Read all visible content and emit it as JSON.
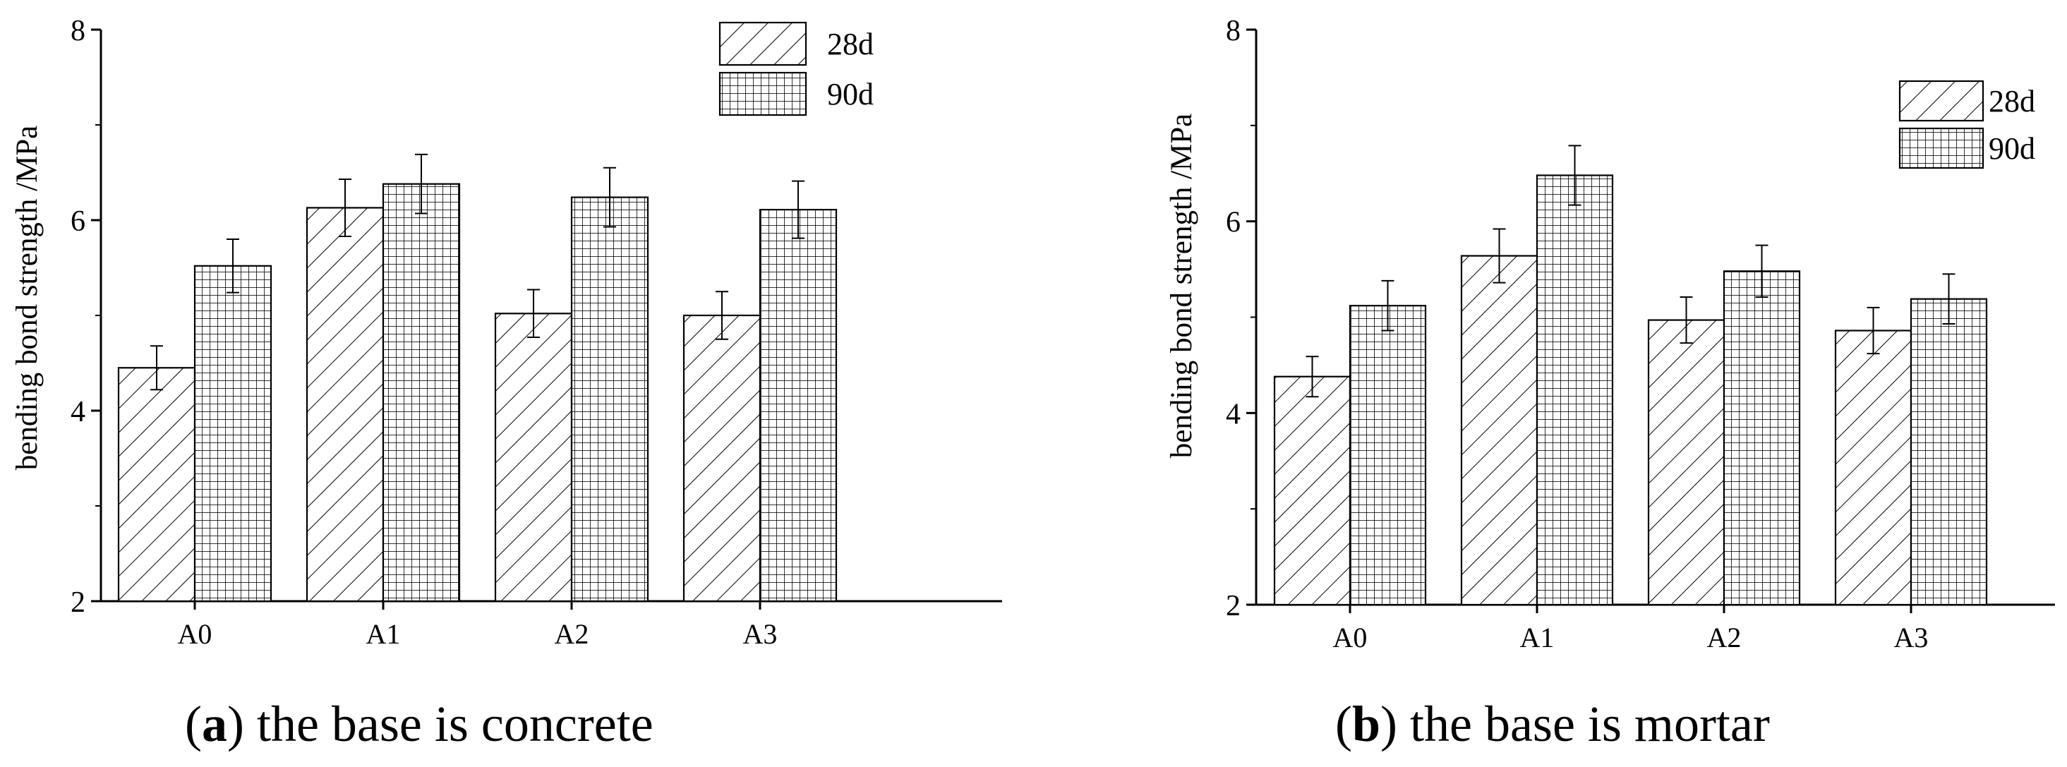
{
  "chart_data": [
    {
      "type": "bar",
      "panel_id": "a",
      "panel_label": "a",
      "caption_text": " the base is concrete",
      "ylabel": "bending bond strength /MPa",
      "xlabel": "",
      "ylim": [
        2,
        8
      ],
      "yticks": [
        "2",
        "4",
        "6",
        "8"
      ],
      "categories": [
        "A0",
        "A1",
        "A2",
        "A3"
      ],
      "legend_position": "top-right",
      "series": [
        {
          "name": "28d",
          "pattern": "hatch",
          "values": [
            4.45,
            6.13,
            5.02,
            5.0
          ],
          "errors": [
            0.23,
            0.3,
            0.25,
            0.25
          ]
        },
        {
          "name": "90d",
          "pattern": "grid",
          "values": [
            5.52,
            6.38,
            6.24,
            6.11
          ],
          "errors": [
            0.28,
            0.31,
            0.31,
            0.3
          ]
        }
      ]
    },
    {
      "type": "bar",
      "panel_id": "b",
      "panel_label": "b",
      "caption_text": " the base is mortar",
      "ylabel": "bending bond strength /MPa",
      "xlabel": "",
      "ylim": [
        2,
        8
      ],
      "yticks": [
        "2",
        "4",
        "6",
        "8"
      ],
      "categories": [
        "A0",
        "A1",
        "A2",
        "A3"
      ],
      "legend_position": "top-right",
      "series": [
        {
          "name": "28d",
          "pattern": "hatch",
          "values": [
            4.38,
            5.64,
            4.97,
            4.86
          ],
          "errors": [
            0.21,
            0.28,
            0.24,
            0.24
          ]
        },
        {
          "name": "90d",
          "pattern": "grid",
          "values": [
            5.12,
            6.48,
            5.48,
            5.19
          ],
          "errors": [
            0.26,
            0.31,
            0.27,
            0.26
          ]
        }
      ]
    }
  ],
  "colors": {
    "ink": "#000000",
    "background": "#ffffff"
  }
}
